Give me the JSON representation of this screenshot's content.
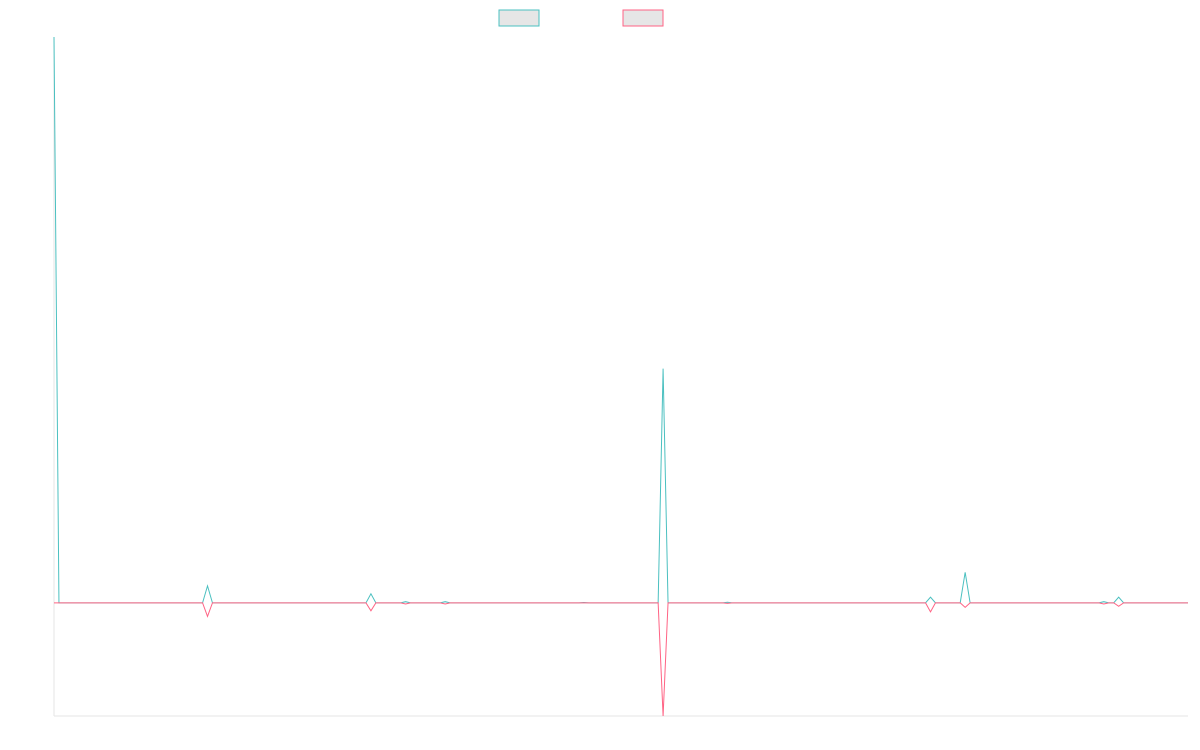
{
  "chart_data": {
    "type": "line",
    "title": "",
    "xlabel": "",
    "ylabel": "",
    "grid": false,
    "legend_placement": "top-center",
    "ylim": [
      -100,
      500
    ],
    "x": [
      0,
      1,
      2,
      3,
      4,
      5,
      6,
      7,
      8,
      9,
      10,
      11,
      12,
      13,
      14,
      15,
      16,
      17,
      18,
      19,
      20,
      21,
      22,
      23,
      24,
      25,
      26,
      27,
      28,
      29,
      30,
      31,
      32,
      33,
      34,
      35,
      36,
      37,
      38,
      39,
      40,
      41,
      42,
      43,
      44,
      45,
      46,
      47,
      48,
      49,
      50,
      51,
      52,
      53,
      54,
      55,
      56,
      57,
      58,
      59,
      60,
      61,
      62,
      63,
      64,
      65,
      66,
      67,
      68,
      69,
      70,
      71,
      72,
      73,
      74,
      75,
      76,
      77,
      78,
      79,
      80,
      81,
      82,
      83,
      84,
      85,
      86,
      87,
      88,
      89,
      90,
      91,
      92,
      93,
      94,
      95,
      96,
      97,
      98,
      99,
      100,
      101,
      102,
      103,
      104,
      105,
      106,
      107,
      108,
      109,
      110,
      111,
      112,
      113,
      114,
      115,
      116,
      117,
      118,
      119,
      120,
      121,
      122,
      123,
      124,
      125,
      126,
      127,
      128,
      129,
      130,
      131,
      132,
      133,
      134,
      135,
      136,
      137,
      138,
      139,
      140,
      141,
      142,
      143,
      144,
      145,
      146,
      147,
      148,
      149,
      150,
      151,
      152,
      153,
      154,
      155,
      156,
      157,
      158,
      159,
      160,
      161,
      162,
      163,
      164,
      165,
      166,
      167,
      168,
      169,
      170,
      171,
      172,
      173,
      174,
      175,
      176,
      177,
      178,
      179,
      180,
      181,
      182,
      183,
      184,
      185,
      186,
      187,
      188,
      189,
      190,
      191,
      192,
      193,
      194,
      195,
      196,
      197,
      198,
      199,
      200,
      201,
      202,
      203,
      204,
      205,
      206,
      207,
      208,
      209,
      210,
      211,
      212,
      213,
      214,
      215,
      216,
      217,
      218,
      219,
      220,
      221,
      222,
      223,
      224,
      225,
      226,
      227,
      228,
      229
    ],
    "series": [
      {
        "name": "",
        "color": "#4bc0c0",
        "points": [
          [
            0,
            500
          ],
          [
            1,
            0
          ],
          [
            30,
            0
          ],
          [
            31,
            15
          ],
          [
            32,
            0
          ],
          [
            63,
            0
          ],
          [
            64,
            8
          ],
          [
            65,
            0
          ],
          [
            70,
            0
          ],
          [
            71,
            1
          ],
          [
            72,
            0
          ],
          [
            78,
            0
          ],
          [
            79,
            1
          ],
          [
            80,
            0
          ],
          [
            106,
            0
          ],
          [
            107,
            0.3
          ],
          [
            108,
            0
          ],
          [
            122,
            0
          ],
          [
            123,
            207
          ],
          [
            124,
            0
          ],
          [
            135,
            0
          ],
          [
            136,
            0.5
          ],
          [
            137,
            0
          ],
          [
            176,
            0
          ],
          [
            177,
            5
          ],
          [
            178,
            0
          ],
          [
            183,
            0
          ],
          [
            184,
            27
          ],
          [
            185,
            0
          ],
          [
            211,
            0
          ],
          [
            212,
            1
          ],
          [
            213,
            0
          ],
          [
            214,
            0
          ],
          [
            215,
            5
          ],
          [
            216,
            0
          ],
          [
            229,
            0
          ]
        ]
      },
      {
        "name": "",
        "color": "#ff6384",
        "points": [
          [
            0,
            0
          ],
          [
            30,
            0
          ],
          [
            31,
            -12
          ],
          [
            32,
            0
          ],
          [
            63,
            0
          ],
          [
            64,
            -7
          ],
          [
            65,
            0
          ],
          [
            70,
            0
          ],
          [
            71,
            -1
          ],
          [
            72,
            0
          ],
          [
            78,
            0
          ],
          [
            79,
            -1
          ],
          [
            80,
            0
          ],
          [
            122,
            0
          ],
          [
            123,
            -100
          ],
          [
            124,
            0
          ],
          [
            135,
            0
          ],
          [
            136,
            -0.5
          ],
          [
            137,
            0
          ],
          [
            176,
            0
          ],
          [
            177,
            -8
          ],
          [
            178,
            0
          ],
          [
            183,
            0
          ],
          [
            184,
            -4
          ],
          [
            185,
            0
          ],
          [
            211,
            0
          ],
          [
            212,
            -1
          ],
          [
            213,
            0
          ],
          [
            214,
            0
          ],
          [
            215,
            -3
          ],
          [
            216,
            0
          ],
          [
            229,
            0
          ]
        ]
      }
    ]
  }
}
